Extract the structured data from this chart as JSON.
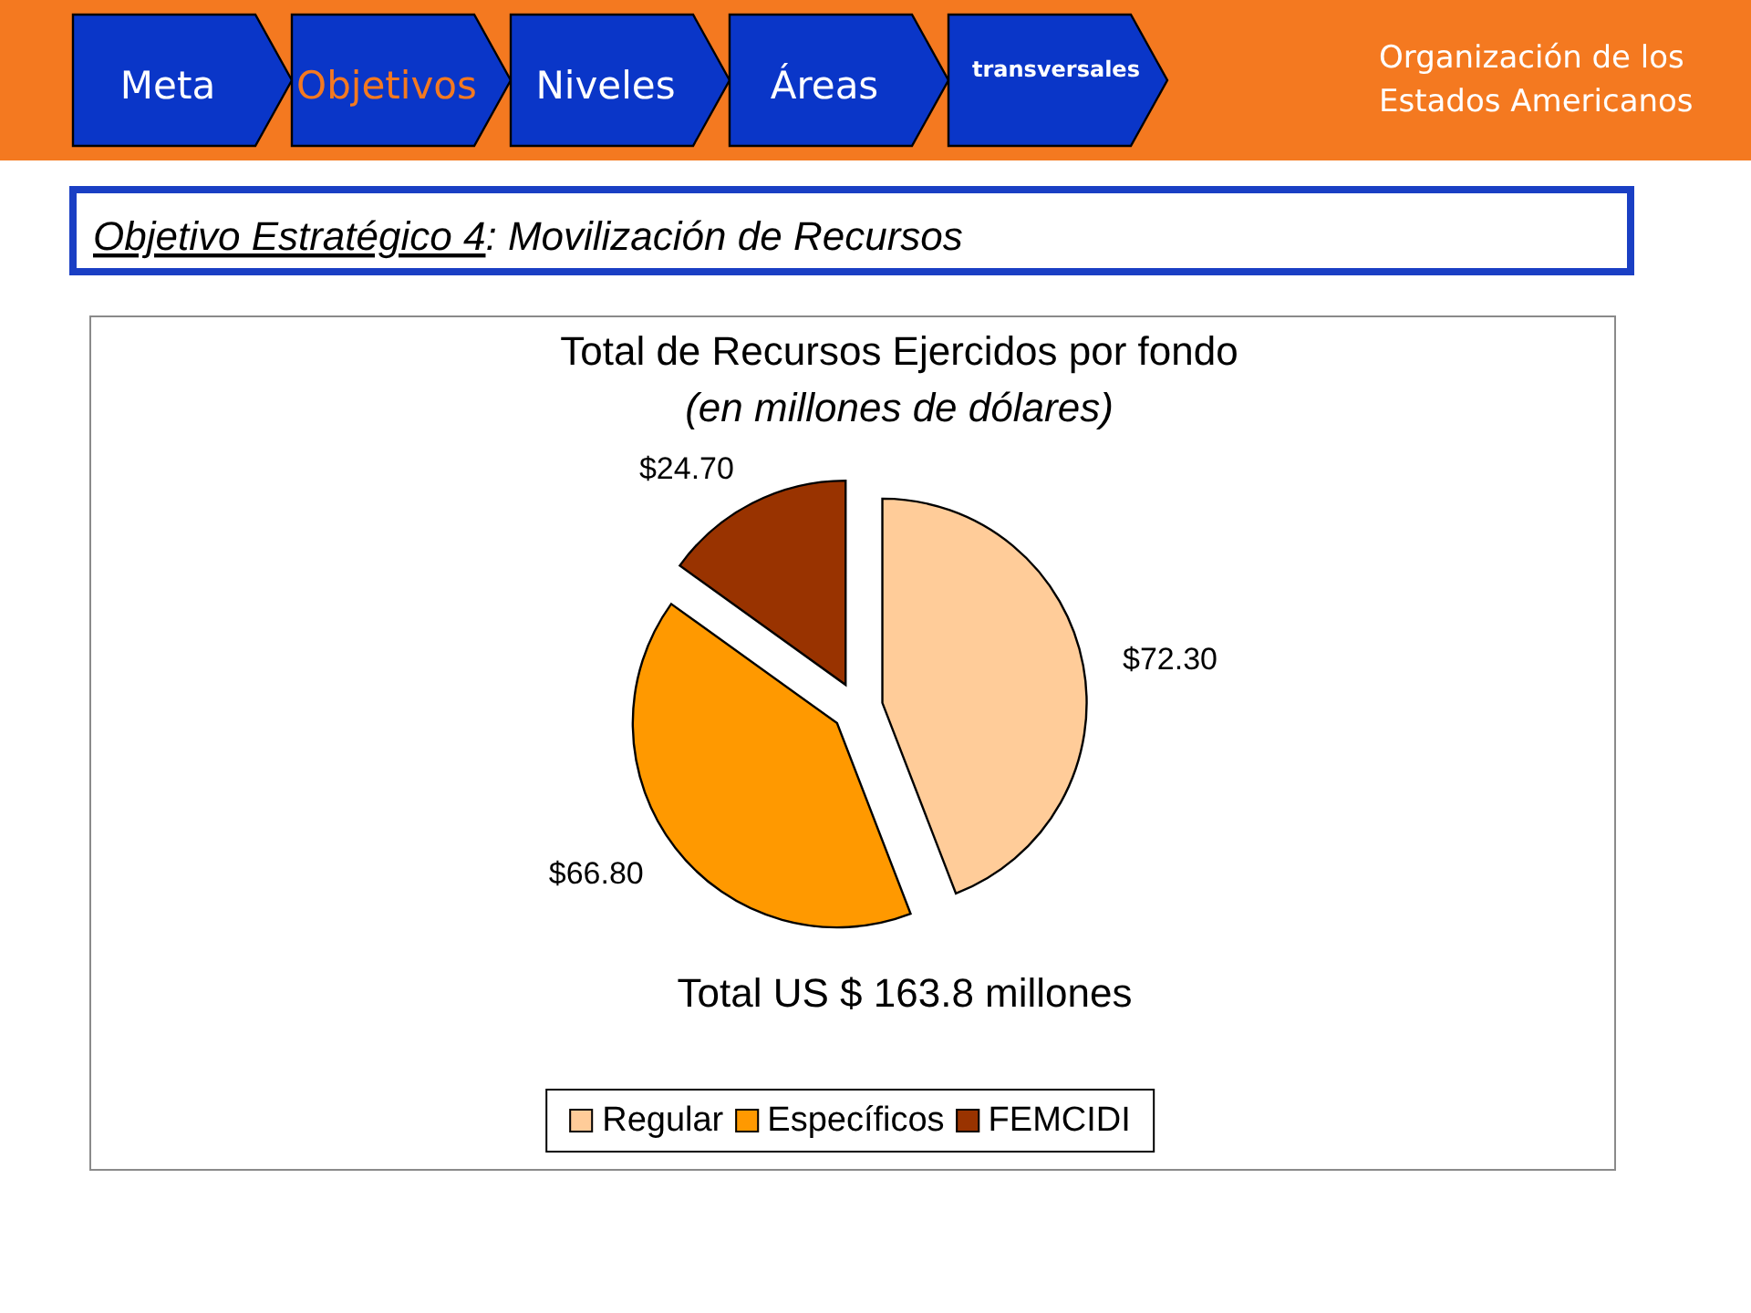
{
  "chart_data": {
    "type": "pie",
    "title": "Total de Recursos Ejercidos por fondo",
    "subtitle": "(en millones de dólares)",
    "categories": [
      "Regular",
      "Específicos",
      "FEMCIDI"
    ],
    "values": [
      72.3,
      66.8,
      24.7
    ],
    "colors": [
      "#ffcc99",
      "#ff9900",
      "#993300"
    ],
    "value_labels": [
      "$72.30",
      "$66.80",
      "$24.70"
    ],
    "legend": "bottom",
    "annotations": [
      "Meta",
      "Objetivos",
      "Niveles",
      "Áreas",
      "transversales",
      "Organización de los Estados Americanos",
      "Objetivo Estratégico 4: Movilización de Recursos",
      "Total US $ 163.8 millones"
    ]
  }
}
